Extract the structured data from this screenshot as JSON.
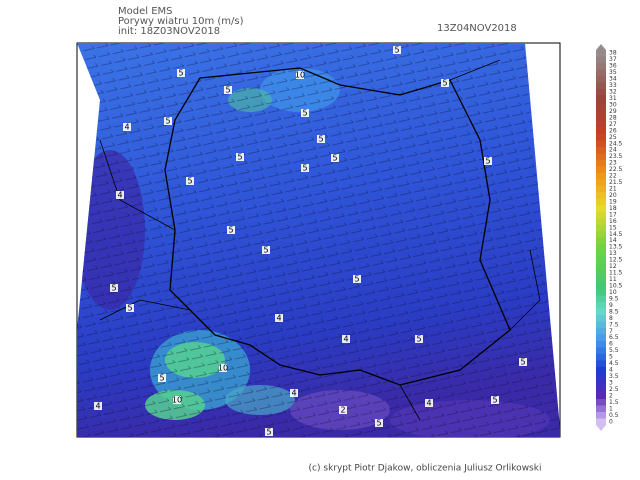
{
  "header": {
    "model": "Model EMS",
    "field": "Porywy wiatru 10m (m/s)",
    "init": "init: 18Z03NOV2018",
    "valid": "13Z04NOV2018"
  },
  "colorbar": {
    "labels": [
      38,
      37,
      36,
      35,
      34,
      33,
      32,
      31,
      30,
      29,
      28,
      27,
      26,
      25,
      24.5,
      24,
      23.5,
      23,
      22.5,
      22,
      21.5,
      21,
      20,
      19,
      18,
      17,
      16,
      15,
      14.5,
      14,
      13.5,
      13,
      12.5,
      12,
      11.5,
      11,
      10.5,
      10,
      9.5,
      9,
      8.5,
      8,
      7.5,
      7,
      6.5,
      6,
      5.5,
      5,
      4.5,
      4,
      3.5,
      3,
      2.5,
      2,
      1.5,
      1,
      0.5,
      0
    ]
  },
  "map": {
    "contour_labels": [
      5,
      10,
      5,
      5,
      4,
      5,
      5,
      5,
      5,
      5,
      5,
      5,
      5,
      5,
      4,
      5,
      5,
      5,
      5,
      5,
      4,
      4,
      5,
      5,
      5,
      10,
      10,
      4,
      4,
      4,
      5,
      2,
      5,
      5
    ]
  },
  "footer": {
    "credit": "(c) skrypt Piotr Djakow, obliczenia Juliusz Orlikowski"
  }
}
